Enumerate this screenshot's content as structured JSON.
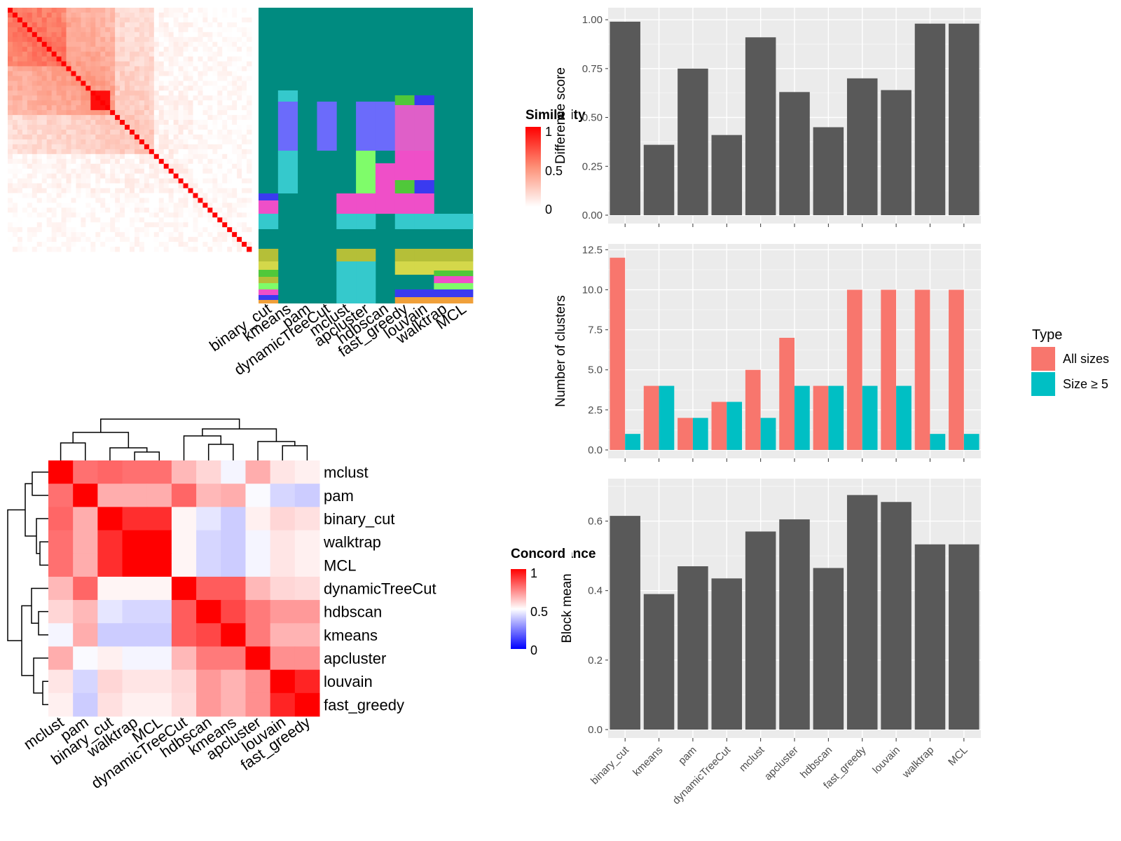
{
  "methods": [
    "binary_cut",
    "kmeans",
    "pam",
    "dynamicTreeCut",
    "mclust",
    "apcluster",
    "hdbscan",
    "fast_greedy",
    "louvain",
    "walktrap",
    "MCL"
  ],
  "similarity_heatmap": {
    "legend_title": "Similarity",
    "legend_ticks": [
      "1",
      "0.5",
      "0"
    ],
    "colors": {
      "high": "#ff0000",
      "mid": "#fd8f76",
      "low": "#ffffff"
    }
  },
  "cluster_membership_panel": {
    "columns": [
      "binary_cut",
      "kmeans",
      "pam",
      "dynamicTreeCut",
      "mclust",
      "apcluster",
      "hdbscan",
      "fast_greedy",
      "louvain",
      "walktrap",
      "MCL"
    ],
    "background_color": "#008b80"
  },
  "concordance_heatmap": {
    "legend_title": "Concordance",
    "legend_ticks": [
      "1",
      "0.5",
      "0"
    ],
    "row_order": [
      "mclust",
      "pam",
      "binary_cut",
      "walktrap",
      "MCL",
      "dynamicTreeCut",
      "hdbscan",
      "kmeans",
      "apcluster",
      "louvain",
      "fast_greedy"
    ],
    "col_order": [
      "mclust",
      "pam",
      "binary_cut",
      "walktrap",
      "MCL",
      "dynamicTreeCut",
      "hdbscan",
      "kmeans",
      "apcluster",
      "louvain",
      "fast_greedy"
    ],
    "colors": {
      "high": "#ff0000",
      "mid": "#ffffff",
      "low": "#0000ff"
    }
  },
  "chart_data": [
    {
      "type": "bar",
      "categories": [
        "binary_cut",
        "kmeans",
        "pam",
        "dynamicTreeCut",
        "mclust",
        "apcluster",
        "hdbscan",
        "fast_greedy",
        "louvain",
        "walktrap",
        "MCL"
      ],
      "values": [
        0.99,
        0.36,
        0.75,
        0.41,
        0.91,
        0.63,
        0.45,
        0.7,
        0.64,
        0.98,
        0.98
      ],
      "ylabel": "Difference score",
      "xlabel": "",
      "ylim": [
        0,
        1.04
      ],
      "yticks": [
        "0.00",
        "0.25",
        "0.50",
        "0.75",
        "1.00"
      ],
      "bar_color": "#595959"
    },
    {
      "type": "bar",
      "categories": [
        "binary_cut",
        "kmeans",
        "pam",
        "dynamicTreeCut",
        "mclust",
        "apcluster",
        "hdbscan",
        "fast_greedy",
        "louvain",
        "walktrap",
        "MCL"
      ],
      "series": [
        {
          "name": "All sizes",
          "values": [
            12,
            4,
            2,
            3,
            5,
            7,
            4,
            10,
            10,
            10,
            10
          ],
          "color": "#f8766d"
        },
        {
          "name": "Size ≥ 5",
          "values": [
            1,
            4,
            2,
            3,
            2,
            4,
            4,
            4,
            4,
            1,
            1
          ],
          "color": "#00bfc4"
        }
      ],
      "ylabel": "Number of clusters",
      "xlabel": "",
      "ylim": [
        0,
        12.6
      ],
      "yticks": [
        "0.0",
        "2.5",
        "5.0",
        "7.5",
        "10.0",
        "12.5"
      ],
      "legend": {
        "title": "Type",
        "placement": "right"
      }
    },
    {
      "type": "bar",
      "categories": [
        "binary_cut",
        "kmeans",
        "pam",
        "dynamicTreeCut",
        "mclust",
        "apcluster",
        "hdbscan",
        "fast_greedy",
        "louvain",
        "walktrap",
        "MCL"
      ],
      "values": [
        0.615,
        0.39,
        0.47,
        0.435,
        0.57,
        0.605,
        0.465,
        0.675,
        0.655,
        0.533,
        0.533
      ],
      "ylabel": "Block mean",
      "xlabel": "",
      "ylim": [
        0,
        0.71
      ],
      "yticks": [
        "0.0",
        "0.2",
        "0.4",
        "0.6"
      ],
      "bar_color": "#595959"
    }
  ]
}
